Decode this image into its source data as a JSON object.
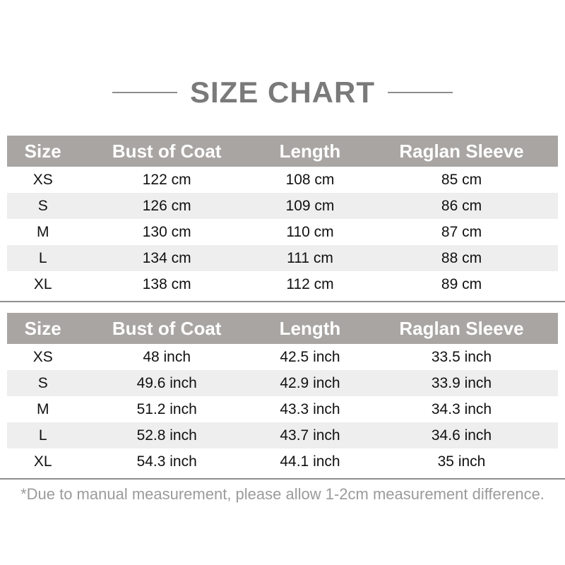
{
  "title": "SIZE CHART",
  "tables": [
    {
      "unit": "cm",
      "headers": [
        "Size",
        "Bust of Coat",
        "Length",
        "Raglan Sleeve"
      ],
      "rows": [
        [
          "XS",
          "122 cm",
          "108 cm",
          "85 cm"
        ],
        [
          "S",
          "126 cm",
          "109 cm",
          "86 cm"
        ],
        [
          "M",
          "130 cm",
          "110 cm",
          "87 cm"
        ],
        [
          "L",
          "134 cm",
          "111 cm",
          "88 cm"
        ],
        [
          "XL",
          "138 cm",
          "112 cm",
          "89 cm"
        ]
      ]
    },
    {
      "unit": "inch",
      "headers": [
        "Size",
        "Bust of Coat",
        "Length",
        "Raglan Sleeve"
      ],
      "rows": [
        [
          "XS",
          "48 inch",
          "42.5 inch",
          "33.5 inch"
        ],
        [
          "S",
          "49.6 inch",
          "42.9 inch",
          "33.9 inch"
        ],
        [
          "M",
          "51.2 inch",
          "43.3 inch",
          "34.3 inch"
        ],
        [
          "L",
          "52.8 inch",
          "43.7 inch",
          "34.6 inch"
        ],
        [
          "XL",
          "54.3 inch",
          "44.1 inch",
          "35 inch"
        ]
      ]
    }
  ],
  "footnote": "*Due to manual measurement, please allow 1-2cm measurement difference.",
  "colors": {
    "header_bg": "#a8a5a2",
    "header_text": "#ffffff",
    "row_alt_bg": "#eeeeee",
    "title_text": "#7a7a7a",
    "divider": "#8e8e8e",
    "footnote_text": "#9b9b9b"
  }
}
